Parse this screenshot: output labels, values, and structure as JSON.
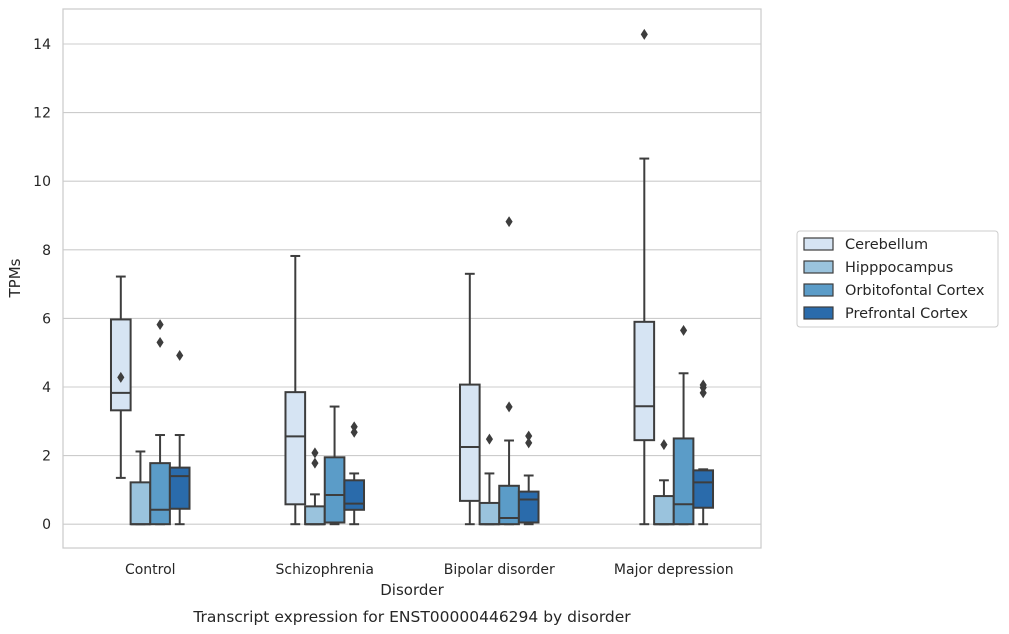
{
  "caption": "Transcript expression for ENST00000446294 by disorder",
  "chart_data": {
    "type": "box",
    "xlabel": "Disorder",
    "ylabel": "TPMs",
    "ylim": [
      -0.7,
      15.0
    ],
    "yticks": [
      0,
      2,
      4,
      6,
      8,
      10,
      12,
      14
    ],
    "grid": true,
    "legend_position": "right",
    "categories": [
      "Control",
      "Schizophrenia",
      "Bipolar disorder",
      "Major depression"
    ],
    "series": [
      {
        "name": "Cerebellum",
        "color": "#d6e4f3",
        "boxes": [
          {
            "whisker_low": 1.35,
            "q1": 3.32,
            "median": 3.83,
            "q3": 5.97,
            "whisker_high": 7.22,
            "outliers": [
              4.28
            ]
          },
          {
            "whisker_low": 0.0,
            "q1": 0.58,
            "median": 2.56,
            "q3": 3.85,
            "whisker_high": 7.82,
            "outliers": []
          },
          {
            "whisker_low": 0.0,
            "q1": 0.68,
            "median": 2.25,
            "q3": 4.07,
            "whisker_high": 7.3,
            "outliers": []
          },
          {
            "whisker_low": 0.0,
            "q1": 2.45,
            "median": 3.44,
            "q3": 5.9,
            "whisker_high": 10.66,
            "outliers": [
              14.28
            ]
          }
        ]
      },
      {
        "name": "Hipppocampus",
        "color": "#9ac3dd",
        "boxes": [
          {
            "whisker_low": 0.0,
            "q1": 0.0,
            "median": 0.0,
            "q3": 1.22,
            "whisker_high": 2.12,
            "outliers": []
          },
          {
            "whisker_low": 0.0,
            "q1": 0.0,
            "median": 0.0,
            "q3": 0.52,
            "whisker_high": 0.87,
            "outliers": [
              1.78,
              2.08
            ]
          },
          {
            "whisker_low": 0.0,
            "q1": 0.0,
            "median": 0.0,
            "q3": 0.62,
            "whisker_high": 1.48,
            "outliers": [
              2.48
            ]
          },
          {
            "whisker_low": 0.0,
            "q1": 0.0,
            "median": 0.0,
            "q3": 0.82,
            "whisker_high": 1.28,
            "outliers": [
              2.32
            ]
          }
        ]
      },
      {
        "name": "Orbitofontal Cortex",
        "color": "#5b9cc8",
        "boxes": [
          {
            "whisker_low": 0.0,
            "q1": 0.0,
            "median": 0.42,
            "q3": 1.78,
            "whisker_high": 2.6,
            "outliers": [
              5.3,
              5.82
            ]
          },
          {
            "whisker_low": 0.0,
            "q1": 0.05,
            "median": 0.85,
            "q3": 1.95,
            "whisker_high": 3.43,
            "outliers": []
          },
          {
            "whisker_low": 0.0,
            "q1": 0.0,
            "median": 0.18,
            "q3": 1.12,
            "whisker_high": 2.44,
            "outliers": [
              3.42,
              8.82
            ]
          },
          {
            "whisker_low": 0.0,
            "q1": 0.0,
            "median": 0.58,
            "q3": 2.5,
            "whisker_high": 4.4,
            "outliers": [
              5.65
            ]
          }
        ]
      },
      {
        "name": "Prefrontal Cortex",
        "color": "#2a6bab",
        "boxes": [
          {
            "whisker_low": 0.0,
            "q1": 0.45,
            "median": 1.4,
            "q3": 1.65,
            "whisker_high": 2.6,
            "outliers": [
              4.92
            ]
          },
          {
            "whisker_low": 0.0,
            "q1": 0.42,
            "median": 0.6,
            "q3": 1.28,
            "whisker_high": 1.48,
            "outliers": [
              2.68,
              2.84
            ]
          },
          {
            "whisker_low": 0.0,
            "q1": 0.05,
            "median": 0.72,
            "q3": 0.95,
            "whisker_high": 1.42,
            "outliers": [
              2.37,
              2.57
            ]
          },
          {
            "whisker_low": 0.0,
            "q1": 0.48,
            "median": 1.22,
            "q3": 1.57,
            "whisker_high": 1.6,
            "outliers": [
              3.83,
              3.98,
              4.06
            ]
          }
        ]
      }
    ]
  }
}
